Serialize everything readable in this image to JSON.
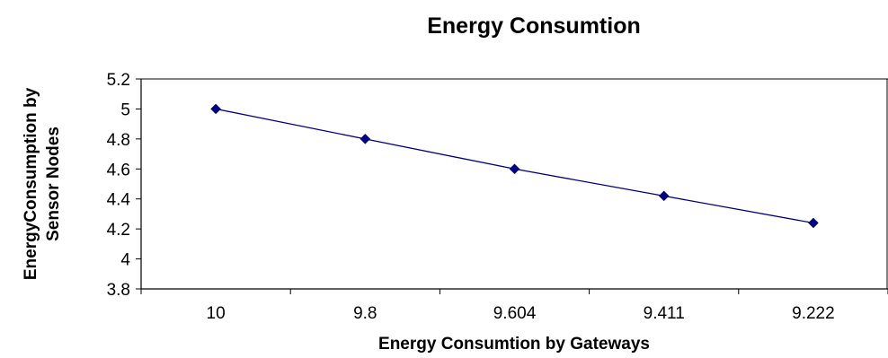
{
  "chart_data": {
    "type": "line",
    "title": "Energy Consumtion",
    "xlabel": "Energy Consumtion by Gateways",
    "ylabel_lines": [
      "EnergyConsumption by",
      "Sensor Nodes"
    ],
    "categories": [
      "10",
      "9.8",
      "9.604",
      "9.411",
      "9.222"
    ],
    "series": [
      {
        "values": [
          5.0,
          4.8,
          4.6,
          4.42,
          4.24
        ]
      }
    ],
    "ylim": [
      3.8,
      5.2
    ],
    "yticks": [
      "3.8",
      "4",
      "4.2",
      "4.4",
      "4.6",
      "4.8",
      "5",
      "5.2"
    ],
    "grid": false,
    "legend": "none",
    "line_color": "#000080",
    "marker": "diamond"
  }
}
